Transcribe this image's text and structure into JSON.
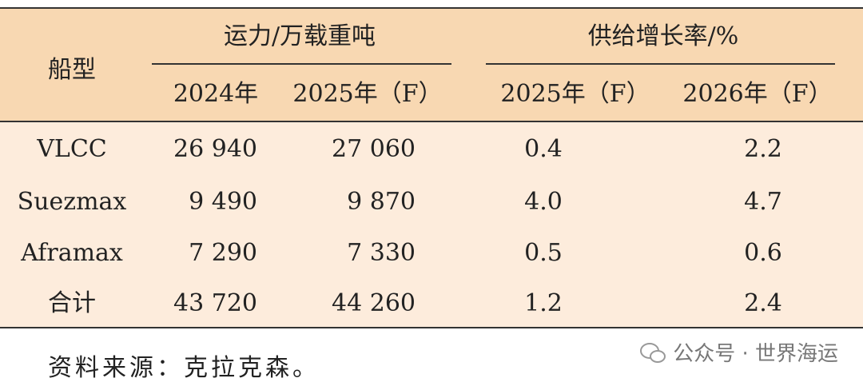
{
  "table": {
    "header": {
      "col0": "船型",
      "group1": "运力/万载重吨",
      "group2": "供给增长率/%",
      "sub": [
        "2024年",
        "2025年（F）",
        "2025年（F）",
        "2026年（F）"
      ]
    },
    "rows": [
      [
        "VLCC",
        "26 940",
        "27 060",
        "0.4",
        "2.2"
      ],
      [
        "Suezmax",
        "9 490",
        "9 870",
        "4.0",
        "4.7"
      ],
      [
        "Aframax",
        "7 290",
        "7 330",
        "0.5",
        "0.6"
      ],
      [
        "合计",
        "43 720",
        "44 260",
        "1.2",
        "2.4"
      ]
    ]
  },
  "source": "资料来源：克拉克森。",
  "watermark": "公众号 · 世界海运"
}
